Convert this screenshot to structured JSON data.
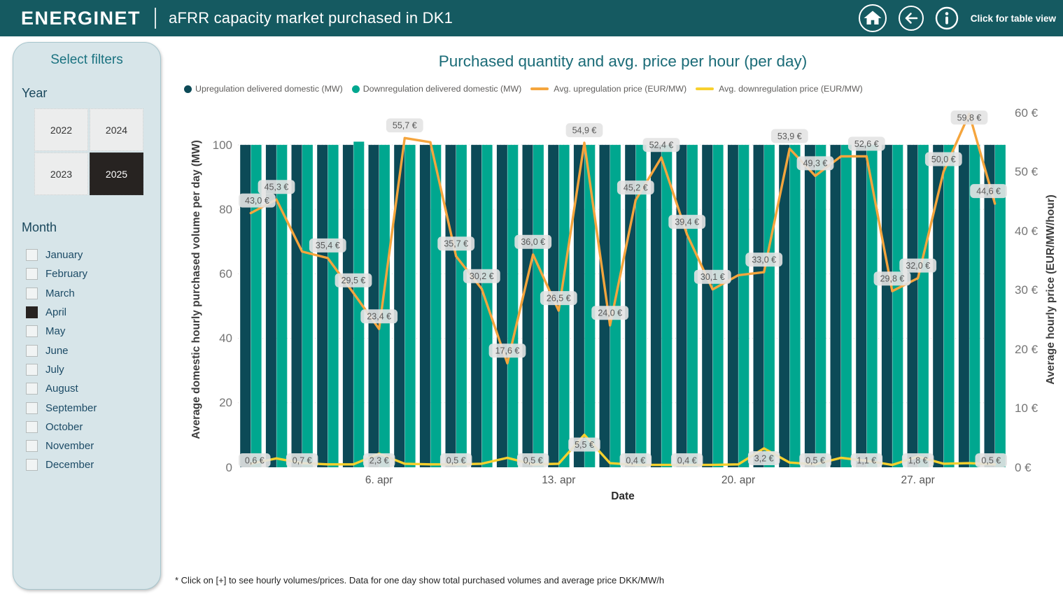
{
  "header": {
    "logo": "ENERGINET",
    "title": "aFRR capacity market purchased in DK1",
    "table_view_label": "Click for table view",
    "icons": [
      "home-icon",
      "back-icon",
      "info-icon"
    ],
    "bg_color": "#155A61"
  },
  "sidebar": {
    "title": "Select filters",
    "year_label": "Year",
    "years": [
      {
        "label": "2022",
        "selected": false
      },
      {
        "label": "2024",
        "selected": false
      },
      {
        "label": "2023",
        "selected": false
      },
      {
        "label": "2025",
        "selected": true
      }
    ],
    "month_label": "Month",
    "months": [
      {
        "label": "January",
        "checked": false
      },
      {
        "label": "February",
        "checked": false
      },
      {
        "label": "March",
        "checked": false
      },
      {
        "label": "April",
        "checked": true
      },
      {
        "label": "May",
        "checked": false
      },
      {
        "label": "June",
        "checked": false
      },
      {
        "label": "July",
        "checked": false
      },
      {
        "label": "August",
        "checked": false
      },
      {
        "label": "September",
        "checked": false
      },
      {
        "label": "October",
        "checked": false
      },
      {
        "label": "November",
        "checked": false
      },
      {
        "label": "December",
        "checked": false
      }
    ]
  },
  "chart_data": {
    "type": "bar+line combo",
    "title": "Purchased quantity and avg. price per hour (per day)",
    "xlabel": "Date",
    "days": [
      1,
      2,
      3,
      4,
      5,
      6,
      7,
      8,
      9,
      10,
      11,
      12,
      13,
      14,
      15,
      16,
      17,
      18,
      19,
      20,
      21,
      22,
      23,
      24,
      25,
      26,
      27,
      28,
      29,
      30
    ],
    "x_ticks": [
      {
        "index": 5,
        "label": "6. apr"
      },
      {
        "index": 12,
        "label": "13. apr"
      },
      {
        "index": 19,
        "label": "20. apr"
      },
      {
        "index": 26,
        "label": "27. apr"
      }
    ],
    "y_left": {
      "label": "Average domestic hourly purchased volume per day (MW)",
      "ticks": [
        0,
        20,
        40,
        60,
        80,
        100
      ],
      "plot_max": 110
    },
    "y_right": {
      "label": "Average hourly price (EUR/MW/hour)",
      "ticks": [
        0,
        10,
        20,
        30,
        40,
        50,
        60
      ],
      "max": 60,
      "tick_suffix": " €"
    },
    "grid": true,
    "legend_position": "top",
    "series": [
      {
        "name": "Upregulation delivered domestic (MW)",
        "type": "bar",
        "marker": "dot",
        "color": "#0C4A57",
        "values": [
          100,
          100,
          100,
          100,
          100,
          100,
          100,
          100,
          100,
          100,
          100,
          100,
          100,
          100,
          100,
          100,
          100,
          100,
          100,
          100,
          100,
          100,
          100,
          100,
          100,
          100,
          100,
          100,
          100,
          100
        ]
      },
      {
        "name": "Downregulation delivered domestic (MW)",
        "type": "bar",
        "marker": "dot",
        "color": "#00A78F",
        "values": [
          100,
          100,
          100,
          100,
          101,
          100,
          100,
          100,
          100,
          100,
          100,
          100,
          100,
          100,
          100,
          100,
          100,
          100,
          100,
          100,
          100,
          100,
          100,
          100,
          100,
          100,
          100,
          100,
          100,
          100
        ]
      },
      {
        "name": "Avg. upregulation price (EUR/MW)",
        "type": "line",
        "marker": "line",
        "color": "#F5A53D",
        "values": [
          43.0,
          45.3,
          36.5,
          35.4,
          29.5,
          23.4,
          55.7,
          55.0,
          35.7,
          30.2,
          17.6,
          36.0,
          26.5,
          54.9,
          24.0,
          45.2,
          52.4,
          39.4,
          30.1,
          32.5,
          33.0,
          53.9,
          49.3,
          52.6,
          52.6,
          29.8,
          32.0,
          50.0,
          59.8,
          44.6
        ],
        "labels": [
          "43,0 €",
          "45,3 €",
          null,
          "35,4 €",
          "29,5 €",
          "23,4 €",
          "55,7 €",
          null,
          "35,7 €",
          "30,2 €",
          "17,6 €",
          "36,0 €",
          "26,5 €",
          "54,9 €",
          "24,0 €",
          "45,2 €",
          "52,4 €",
          "39,4 €",
          "30,1 €",
          null,
          "33,0 €",
          "53,9 €",
          "49,3 €",
          null,
          "52,6 €",
          "29,8 €",
          "32,0 €",
          "50,0 €",
          "59,8 €",
          "44,6 €"
        ]
      },
      {
        "name": "Avg. downregulation price (EUR/MW)",
        "type": "line",
        "marker": "line",
        "color": "#F8D02E",
        "values": [
          0.6,
          1.5,
          0.7,
          0.5,
          0.5,
          2.3,
          0.6,
          0.5,
          0.5,
          0.6,
          1.6,
          0.5,
          0.6,
          5.5,
          0.7,
          0.4,
          0.4,
          0.4,
          0.4,
          0.5,
          3.2,
          0.8,
          0.5,
          1.6,
          1.1,
          0.4,
          1.8,
          0.6,
          0.7,
          0.5
        ],
        "labels": [
          "0,6 €",
          null,
          "0,7 €",
          null,
          null,
          "2,3 €",
          null,
          null,
          "0,5 €",
          null,
          null,
          "0,5 €",
          null,
          "5,5 €",
          null,
          "0,4 €",
          null,
          "0,4 €",
          null,
          null,
          "3,2 €",
          null,
          "0,5 €",
          null,
          "1,1 €",
          null,
          "1,8 €",
          null,
          null,
          "0,5 €"
        ]
      }
    ]
  },
  "footnote": "* Click on [+] to see hourly volumes/prices. Data for one day show total purchased volumes and average price DKK/MW/h"
}
